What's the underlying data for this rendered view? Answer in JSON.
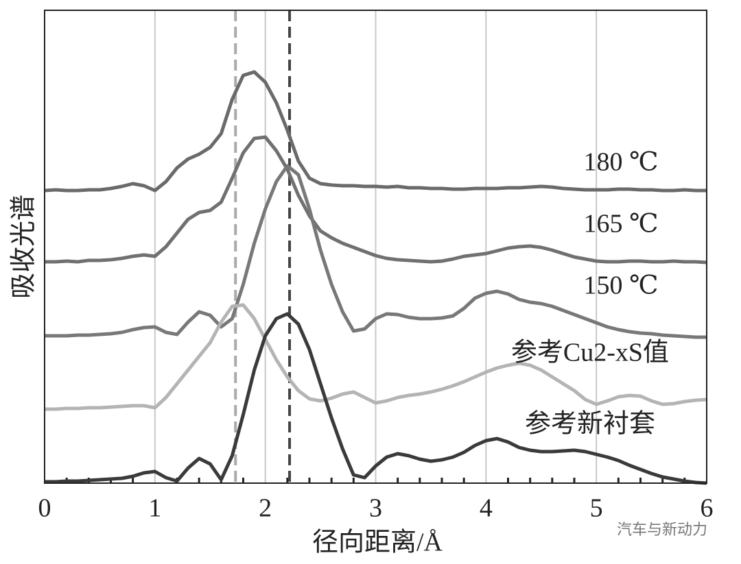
{
  "chart_data": {
    "type": "line",
    "xlabel": "径向距离/Å",
    "ylabel": "吸收光谱",
    "watermark": "汽车与新动力",
    "xlim": [
      0,
      6
    ],
    "xticks": [
      0,
      1,
      2,
      3,
      4,
      5,
      6
    ],
    "xminorticks": [
      0.2,
      0.4,
      0.6,
      0.8,
      1.2,
      1.4,
      1.6,
      1.8,
      2.2,
      2.4,
      2.6,
      2.8,
      3.2,
      3.4,
      3.6,
      3.8,
      4.2,
      4.4,
      4.6,
      4.8,
      5.2,
      5.4,
      5.6,
      5.8
    ],
    "ylim": [
      0,
      690
    ],
    "grid": true,
    "reference_lines": [
      {
        "x": 1.73,
        "color": "#aaaaaa"
      },
      {
        "x": 2.22,
        "color": "#444444"
      }
    ],
    "x": [
      0,
      0.1,
      0.2,
      0.3,
      0.4,
      0.5,
      0.6,
      0.7,
      0.8,
      0.9,
      1,
      1.1,
      1.2,
      1.3,
      1.4,
      1.5,
      1.6,
      1.7,
      1.8,
      1.9,
      2,
      2.1,
      2.2,
      2.3,
      2.4,
      2.5,
      2.6,
      2.7,
      2.8,
      2.9,
      3,
      3.1,
      3.2,
      3.3,
      3.4,
      3.5,
      3.6,
      3.7,
      3.8,
      3.9,
      4,
      4.1,
      4.2,
      4.3,
      4.4,
      4.5,
      4.6,
      4.7,
      4.8,
      4.9,
      5,
      5.1,
      5.2,
      5.3,
      5.4,
      5.5,
      5.6,
      5.7,
      5.8,
      5.9,
      6
    ],
    "series": [
      {
        "name": "180 ℃",
        "color": "#6a6a6a",
        "values": [
          427,
          428,
          427,
          427,
          428,
          428,
          430,
          433,
          437,
          434,
          427,
          440,
          460,
          473,
          480,
          490,
          510,
          560,
          595,
          600,
          585,
          555,
          515,
          470,
          445,
          437,
          435,
          434,
          434,
          433,
          433,
          432,
          433,
          431,
          431,
          430,
          430,
          429,
          429,
          430,
          430,
          430,
          431,
          431,
          432,
          433,
          432,
          430,
          429,
          428,
          428,
          428,
          429,
          429,
          428,
          428,
          427,
          427,
          428,
          427,
          427
        ]
      },
      {
        "name": "165 ℃",
        "color": "#707070",
        "values": [
          323,
          323,
          324,
          323,
          325,
          325,
          326,
          328,
          331,
          333,
          331,
          345,
          365,
          385,
          395,
          398,
          410,
          445,
          482,
          503,
          505,
          485,
          458,
          420,
          390,
          368,
          358,
          350,
          344,
          338,
          332,
          328,
          326,
          325,
          324,
          323,
          324,
          327,
          331,
          333,
          335,
          339,
          343,
          345,
          346,
          344,
          340,
          335,
          330,
          327,
          324,
          323,
          323,
          324,
          324,
          323,
          323,
          324,
          323,
          323,
          322
        ]
      },
      {
        "name": "150 ℃",
        "color": "#787878",
        "values": [
          215,
          215,
          215,
          216,
          216,
          217,
          218,
          220,
          224,
          227,
          228,
          220,
          217,
          235,
          250,
          245,
          228,
          240,
          290,
          350,
          400,
          440,
          463,
          450,
          400,
          340,
          290,
          250,
          222,
          225,
          240,
          247,
          246,
          242,
          240,
          240,
          241,
          244,
          255,
          270,
          277,
          280,
          276,
          268,
          264,
          262,
          258,
          252,
          246,
          240,
          234,
          228,
          224,
          221,
          219,
          218,
          216,
          215,
          214,
          213,
          213
        ]
      },
      {
        "name": "参考Cu2-xS值",
        "color": "#b4b4b4",
        "values": [
          108,
          108,
          109,
          109,
          110,
          110,
          111,
          112,
          113,
          113,
          110,
          125,
          145,
          165,
          185,
          205,
          235,
          258,
          260,
          240,
          210,
          180,
          155,
          135,
          123,
          120,
          124,
          130,
          133,
          125,
          117,
          120,
          125,
          128,
          130,
          133,
          137,
          142,
          148,
          155,
          162,
          168,
          172,
          175,
          172,
          165,
          155,
          145,
          135,
          122,
          115,
          120,
          126,
          128,
          127,
          120,
          115,
          116,
          119,
          121,
          122
        ]
      },
      {
        "name": "参考新衬套",
        "color": "#3a3a3a",
        "values": [
          2,
          2,
          3,
          3,
          4,
          5,
          6,
          7,
          10,
          15,
          17,
          8,
          3,
          22,
          36,
          28,
          5,
          40,
          100,
          165,
          215,
          240,
          247,
          232,
          195,
          145,
          95,
          50,
          12,
          8,
          25,
          38,
          43,
          40,
          35,
          32,
          34,
          38,
          45,
          55,
          62,
          65,
          60,
          52,
          48,
          46,
          46,
          47,
          48,
          46,
          42,
          38,
          33,
          26,
          20,
          14,
          9,
          6,
          3,
          1,
          0
        ]
      }
    ]
  }
}
